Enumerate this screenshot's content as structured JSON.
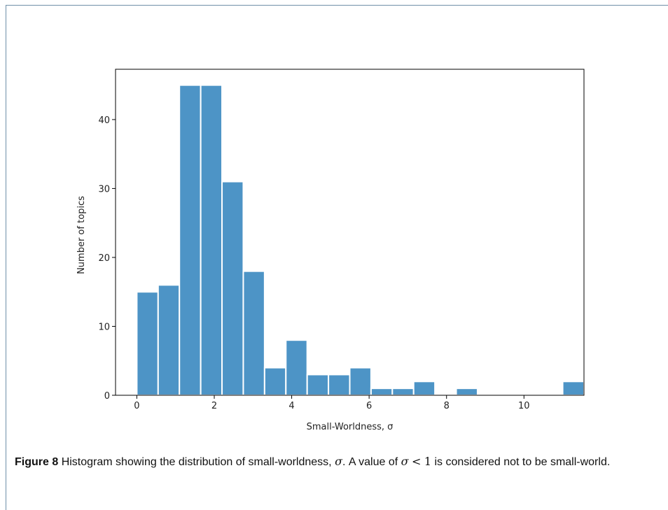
{
  "chart_data": {
    "type": "bar",
    "title": "",
    "xlabel": "Small-Worldness, σ",
    "ylabel": "Number of topics",
    "bin_width": 0.55,
    "bin_start": 0.0,
    "values": [
      15,
      16,
      45,
      45,
      31,
      18,
      4,
      8,
      3,
      3,
      4,
      1,
      1,
      2,
      0,
      1,
      0,
      0,
      0,
      0,
      2
    ],
    "xticks": [
      0,
      2,
      4,
      6,
      8,
      10
    ],
    "yticks": [
      0,
      10,
      20,
      30,
      40
    ],
    "xlim": [
      -0.55,
      11.55
    ],
    "ylim": [
      0,
      47.3
    ],
    "bar_color": "#4d94c6",
    "grid": false,
    "legend": "none"
  },
  "caption": {
    "figure_label": "Figure 8",
    "text_before": "Histogram showing the distribution of small-worldness,",
    "sigma": "σ",
    "text_middle": ". A value of",
    "lt": "<",
    "one": "1",
    "text_after": "is considered not to be small-world."
  }
}
